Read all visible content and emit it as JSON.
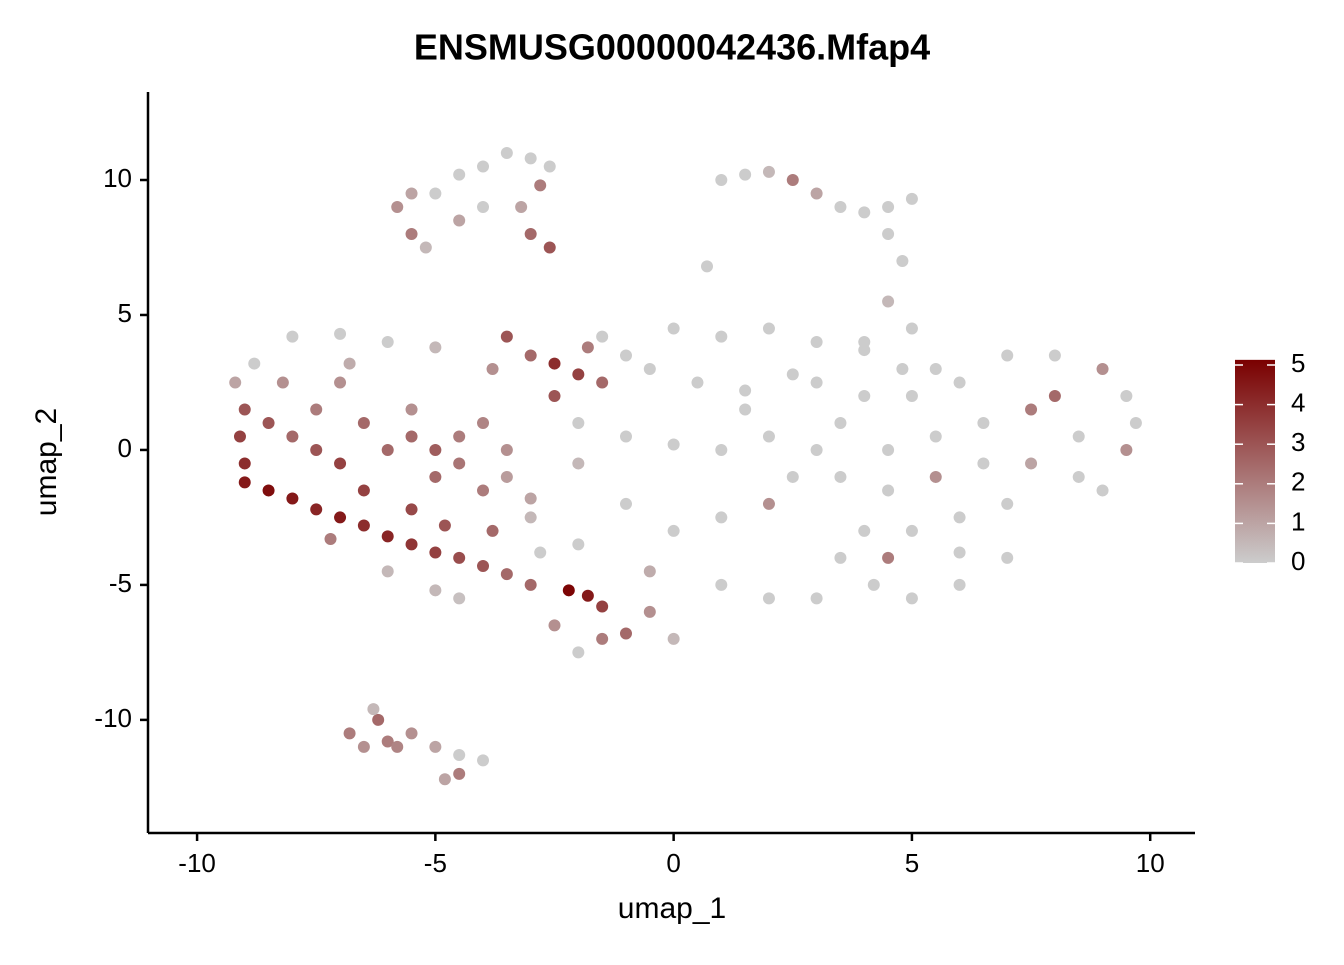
{
  "chart_data": {
    "type": "scatter",
    "title": "ENSMUSG00000042436.Mfap4",
    "xlabel": "umap_1",
    "ylabel": "umap_2",
    "x": [
      -9.2,
      -9.0,
      -9.1,
      -9.0,
      -9.0,
      -8.5,
      -8.0,
      -7.5,
      -7.0,
      -6.5,
      -6.0,
      -5.5,
      -5.0,
      -4.5,
      -4.0,
      -3.5,
      -8.8,
      -8.0,
      -7.0,
      -6.0,
      -5.0,
      -8.5,
      -8.0,
      -7.5,
      -7.0,
      -7.5,
      -7.0,
      -6.5,
      -6.5,
      -6.0,
      -5.5,
      -5.5,
      -5.0,
      -5.0,
      -4.5,
      -4.5,
      -4.0,
      -4.0,
      -3.5,
      -3.5,
      -6.0,
      -5.0,
      -4.5,
      -8.2,
      -7.2,
      -6.8,
      -5.5,
      -4.8,
      -3.8,
      -3.0,
      -3.5,
      -3.0,
      -2.5,
      -2.0,
      -1.5,
      -2.5,
      -1.8,
      -3.8,
      -1.0,
      -2.2,
      -1.8,
      -1.5,
      -2.5,
      -1.5,
      -2.0,
      -1.0,
      0.0,
      -0.5,
      -3.0,
      0.0,
      1.0,
      2.0,
      3.0,
      4.0,
      -0.5,
      0.5,
      1.5,
      2.5,
      -1.0,
      0.0,
      1.0,
      2.0,
      3.0,
      -1.0,
      0.0,
      1.0,
      2.0,
      -2.0,
      -3.0,
      -2.8,
      1.0,
      2.0,
      3.0,
      -0.5,
      -2.0,
      -2.0,
      2.5,
      1.5,
      -1.5,
      4.5,
      5.0,
      4.8,
      4.0,
      5.0,
      6.0,
      7.0,
      8.0,
      9.0,
      9.5,
      9.7,
      9.5,
      8.5,
      7.5,
      6.5,
      5.5,
      4.5,
      3.5,
      3.5,
      4.5,
      5.5,
      6.5,
      7.5,
      8.5,
      9.0,
      7.0,
      6.0,
      5.0,
      4.0,
      3.5,
      4.2,
      5.0,
      6.0,
      7.0,
      6.0,
      4.5,
      8.0,
      5.5,
      3.0,
      4.0,
      -5.8,
      -5.5,
      -5.2,
      -5.0,
      -4.5,
      -4.0,
      -3.5,
      -3.0,
      -2.6,
      -2.8,
      -3.2,
      -4.0,
      -4.5,
      -3.0,
      -2.6,
      -5.5,
      1.5,
      2.0,
      2.5,
      3.0,
      3.5,
      4.0,
      4.5,
      5.0,
      4.5,
      4.8,
      0.7,
      1.0,
      -6.8,
      -6.5,
      -6.2,
      -6.0,
      -5.5,
      -5.0,
      -4.5,
      -4.0,
      -4.5,
      -4.8,
      -5.8,
      -6.3
    ],
    "y": [
      2.5,
      1.5,
      0.5,
      -0.5,
      -1.2,
      -1.5,
      -1.8,
      -2.2,
      -2.5,
      -2.8,
      -3.2,
      -3.5,
      -3.8,
      -4.0,
      -4.3,
      -4.6,
      3.2,
      4.2,
      4.3,
      4.0,
      3.8,
      1.0,
      0.5,
      0.0,
      -0.5,
      1.5,
      2.5,
      1.0,
      -1.5,
      0.0,
      1.5,
      0.5,
      0.0,
      -1.0,
      0.5,
      -0.5,
      1.0,
      -1.5,
      0.0,
      -1.0,
      -4.5,
      -5.2,
      -5.5,
      2.5,
      -3.3,
      3.2,
      -2.2,
      -2.8,
      -3.0,
      -1.8,
      4.2,
      3.5,
      3.2,
      2.8,
      2.5,
      2.0,
      3.8,
      3.0,
      3.5,
      -5.2,
      -5.4,
      -5.8,
      -6.5,
      -7.0,
      -7.5,
      -6.8,
      -7.0,
      -6.0,
      -5.0,
      4.5,
      4.2,
      4.5,
      4.0,
      3.7,
      3.0,
      2.5,
      2.2,
      2.8,
      0.5,
      0.2,
      0.0,
      0.5,
      0.0,
      -2.0,
      -3.0,
      -2.5,
      -2.0,
      -3.5,
      -2.5,
      -3.8,
      -5.0,
      -5.5,
      -5.5,
      -4.5,
      -0.5,
      1.0,
      -1.0,
      1.5,
      4.2,
      5.5,
      4.5,
      3.0,
      2.0,
      2.0,
      2.5,
      3.5,
      3.5,
      3.0,
      2.0,
      1.0,
      0.0,
      0.5,
      1.5,
      1.0,
      0.5,
      0.0,
      1.0,
      -1.0,
      -1.5,
      -1.0,
      -0.5,
      -0.5,
      -1.0,
      -1.5,
      -2.0,
      -2.5,
      -3.0,
      -3.0,
      -4.0,
      -5.0,
      -5.5,
      -5.0,
      -4.0,
      -3.8,
      -4.0,
      2.0,
      3.0,
      2.5,
      4.0,
      9.0,
      8.0,
      7.5,
      9.5,
      10.2,
      10.5,
      11.0,
      10.8,
      10.5,
      9.8,
      9.0,
      9.0,
      8.5,
      8.0,
      7.5,
      9.5,
      10.2,
      10.3,
      10.0,
      9.5,
      9.0,
      8.8,
      9.0,
      9.3,
      8.0,
      7.0,
      6.8,
      10.0,
      -10.5,
      -11.0,
      -10.0,
      -10.8,
      -10.5,
      -11.0,
      -11.3,
      -11.5,
      -12.0,
      -12.2,
      -11.0,
      -9.6
    ],
    "values": [
      1,
      3,
      3.5,
      4,
      4.5,
      4.8,
      4.5,
      4.2,
      4.5,
      4,
      4.2,
      3.8,
      3.5,
      3.2,
      3,
      2.5,
      0,
      0,
      0,
      0,
      0.5,
      3,
      2.5,
      3,
      3.5,
      2,
      1.5,
      2.5,
      3.5,
      2.5,
      1.5,
      2.5,
      2.8,
      2.5,
      2,
      2.2,
      1.8,
      2,
      1.5,
      1.2,
      0.5,
      0.5,
      0.3,
      1.5,
      2,
      0.8,
      3.3,
      3,
      2.5,
      1,
      3,
      2.5,
      4,
      3.5,
      2.5,
      3,
      2,
      1.5,
      0,
      5,
      4.5,
      3.5,
      1.5,
      2,
      0,
      2.5,
      0.5,
      1.5,
      2.5,
      0,
      0,
      0,
      0,
      0,
      0,
      0,
      0,
      0,
      0,
      0,
      0,
      0,
      0,
      0,
      0,
      0,
      1.5,
      0,
      0.5,
      0,
      0,
      0,
      0,
      0.8,
      0.5,
      0,
      0,
      0,
      0,
      0.5,
      0,
      0,
      0,
      0,
      0,
      0,
      0,
      1.5,
      0,
      0,
      1.5,
      0,
      2,
      0,
      0,
      0,
      0,
      0,
      0,
      1.5,
      0,
      1,
      0,
      0,
      0,
      0,
      0,
      0,
      0,
      0,
      0,
      0,
      0,
      0,
      2,
      2.5,
      0,
      0,
      0,
      1.5,
      2,
      0.5,
      0,
      0,
      0,
      0,
      0,
      0,
      2,
      1,
      0,
      1,
      2.5,
      3,
      1,
      0,
      0.5,
      2,
      1,
      0,
      0,
      0,
      0,
      0,
      0,
      0,
      0,
      2,
      1.5,
      2.5,
      2,
      1.5,
      1,
      0,
      0,
      2,
      1,
      1.8,
      0.5
    ],
    "xlim": [
      -11.03,
      10.94
    ],
    "ylim": [
      -14.19,
      13.26
    ],
    "xticks": [
      -10,
      -5,
      0,
      5,
      10
    ],
    "yticks": [
      -10,
      -5,
      0,
      5,
      10
    ],
    "color_low": "#cccccc",
    "color_high": "#7a0000",
    "clim": [
      0,
      5.13
    ],
    "cticks": [
      0,
      1,
      2,
      3,
      4,
      5
    ]
  }
}
